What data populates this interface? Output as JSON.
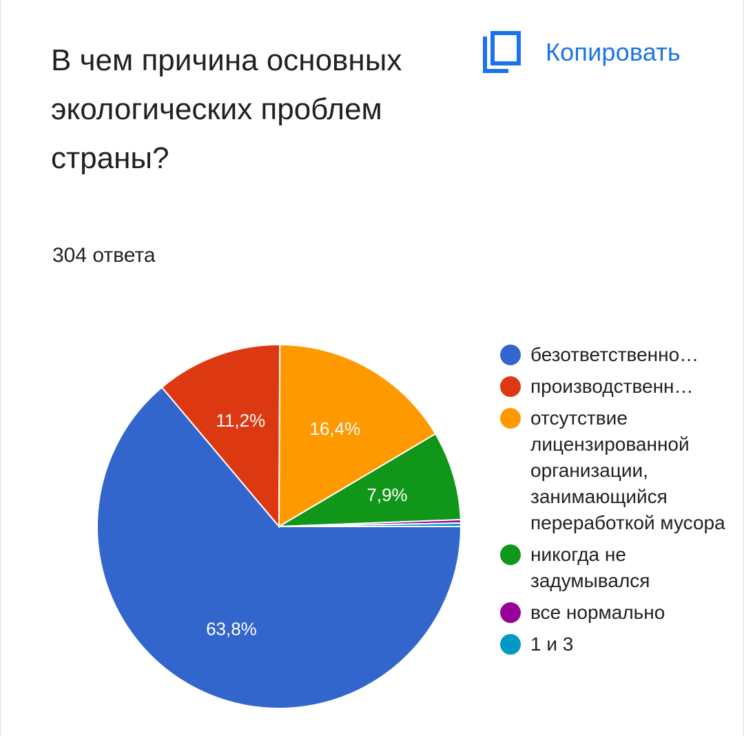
{
  "question": {
    "title": "В чем причина основных экологических проблем страны?",
    "response_count": "304 ответа"
  },
  "toolbar": {
    "copy_label": "Копировать",
    "copy_icon": "copy-icon"
  },
  "chart_data": {
    "type": "pie",
    "title": "",
    "slices": [
      {
        "name": "безответственно…",
        "value": 63.8,
        "label": "63,8%",
        "color": "#3366cc"
      },
      {
        "name": "производственн…",
        "value": 11.2,
        "label": "11,2%",
        "color": "#dc3912"
      },
      {
        "name": "отсутствие лицензированной организации, занимающийся переработкой мусора",
        "value": 16.4,
        "label": "16,4%",
        "color": "#ff9900"
      },
      {
        "name": "никогда не задумывался",
        "value": 7.9,
        "label": "7,9%",
        "color": "#109618"
      },
      {
        "name": "все нормально",
        "value": 0.3,
        "label": "",
        "color": "#990099"
      },
      {
        "name": "1 и 3",
        "value": 0.3,
        "label": "",
        "color": "#0099c6"
      }
    ],
    "legend": "right"
  }
}
